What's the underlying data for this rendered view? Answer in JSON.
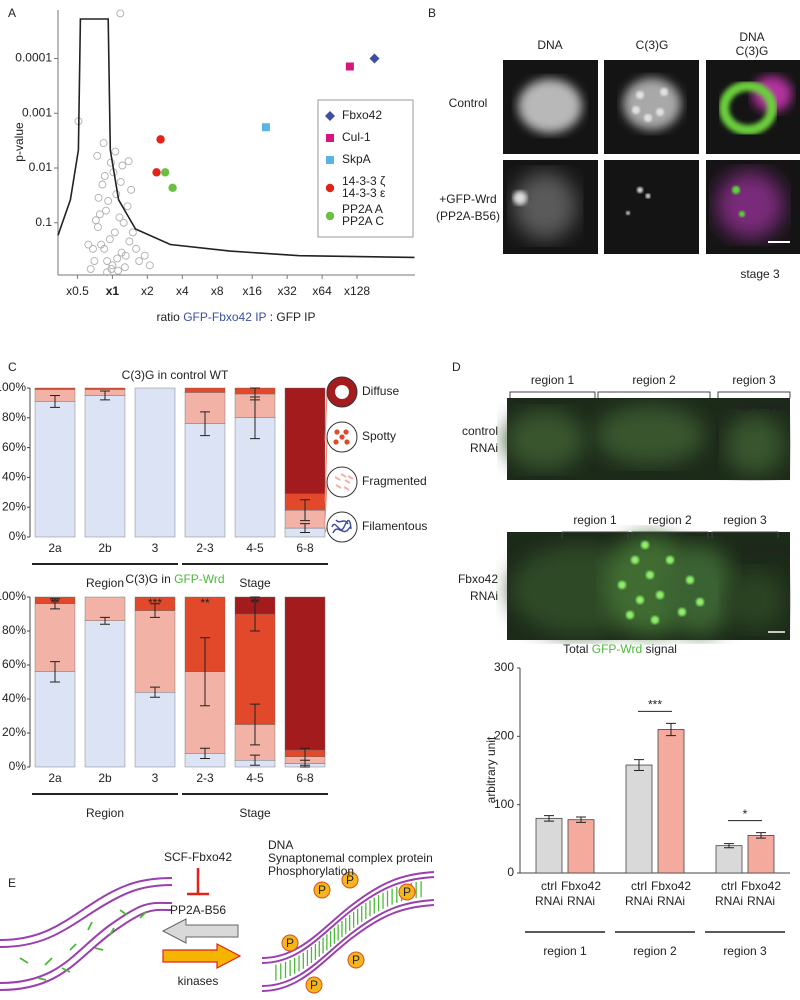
{
  "panel_labels": [
    "A",
    "B",
    "C",
    "D",
    "E"
  ],
  "chart_data": [
    {
      "type": "scatter",
      "ylabel": "p-value",
      "xlabel": [
        "ratio ",
        "GFP-Fbxo42 IP",
        " : GFP IP"
      ],
      "xlog": true,
      "ylog": true,
      "xlim": [
        0.34,
        404
      ],
      "ylim": [
        0.9,
        1.3e-05
      ],
      "xticks": [
        {
          "value": 0.5,
          "label": "x0.5"
        },
        {
          "value": 1,
          "label": "x1",
          "bold": true
        },
        {
          "value": 2,
          "label": "x2"
        },
        {
          "value": 4,
          "label": "x4"
        },
        {
          "value": 8,
          "label": "x8"
        },
        {
          "value": 16,
          "label": "x16"
        },
        {
          "value": 32,
          "label": "x32"
        },
        {
          "value": 64,
          "label": "x64"
        },
        {
          "value": 128,
          "label": "x128"
        }
      ],
      "yticks": [
        0.0001,
        0.001,
        0.01,
        0.1
      ],
      "background": {
        "color": "#b0b0b0",
        "x": [
          1.0,
          0.9,
          1.1,
          0.85,
          1.2,
          0.95,
          1.05,
          0.8,
          1.3,
          0.75,
          1.4,
          0.7,
          1.15,
          0.88,
          1.25,
          0.92,
          1.08,
          0.78,
          1.35,
          0.82,
          1.5,
          0.68,
          1.6,
          0.72,
          1.02,
          0.97,
          1.18,
          0.86,
          1.45,
          0.76,
          1.7,
          0.65,
          1.9,
          0.62,
          2.1,
          0.98,
          1.12,
          0.9,
          1.28,
          1.06,
          0.84,
          1.22,
          1.38,
          0.74,
          1.17,
          0.51
        ],
        "y": [
          0.6,
          0.5,
          0.45,
          0.3,
          0.35,
          0.2,
          0.15,
          0.25,
          0.4,
          0.12,
          0.22,
          0.5,
          0.08,
          0.06,
          0.1,
          0.04,
          0.03,
          0.07,
          0.05,
          0.02,
          0.15,
          0.3,
          0.3,
          0.09,
          0.012,
          0.008,
          0.018,
          0.014,
          0.025,
          0.035,
          0.5,
          0.7,
          0.4,
          0.25,
          0.6,
          0.7,
          0.75,
          0.8,
          0.65,
          0.005,
          0.0035,
          0.009,
          0.0075,
          0.006,
          1.5e-05,
          0.0014
        ]
      },
      "threshold": {
        "color": "#222222",
        "x": [
          0.34,
          0.435,
          0.51,
          0.53,
          0.92,
          0.96,
          1.13,
          1.58,
          3.15,
          10.3,
          41,
          400
        ],
        "y": [
          0.17,
          0.038,
          0.0047,
          1.9e-05,
          1.9e-05,
          0.0047,
          0.038,
          0.13,
          0.25,
          0.33,
          0.4,
          0.43
        ]
      },
      "legend": "right",
      "series": [
        {
          "name": [
            "Fbxo42"
          ],
          "color": "#3c4fa3",
          "marker": "diamond",
          "x": [
            181
          ],
          "y": [
            0.0001
          ]
        },
        {
          "name": [
            "Cul-1"
          ],
          "color": "#d6157f",
          "marker": "square",
          "x": [
            111
          ],
          "y": [
            0.00014
          ]
        },
        {
          "name": [
            "SkpA"
          ],
          "color": "#5bb5e3",
          "marker": "square",
          "x": [
            21
          ],
          "y": [
            0.0018
          ]
        },
        {
          "name": [
            "14-3-3 ζ",
            "14-3-3 ε"
          ],
          "color": "#e2231a",
          "marker": "circle",
          "x": [
            2.6,
            2.4
          ],
          "y": [
            0.003,
            0.012
          ]
        },
        {
          "name": [
            "PP2A A",
            "PP2A C"
          ],
          "color": "#6abf45",
          "marker": "circle",
          "x": [
            2.85,
            3.3
          ],
          "y": [
            0.012,
            0.023
          ]
        }
      ]
    },
    {
      "type": "bar",
      "stacked": true,
      "title": [
        "C(3)G in control WT"
      ],
      "ylim": [
        0,
        100
      ],
      "yticks": [
        {
          "value": 0,
          "label": "0%"
        },
        {
          "value": 20,
          "label": "20%"
        },
        {
          "value": 40,
          "label": "40%"
        },
        {
          "value": 60,
          "label": "60%"
        },
        {
          "value": 80,
          "label": "80%"
        },
        {
          "value": 100,
          "label": "100%"
        }
      ],
      "groups": [
        {
          "name": "Region",
          "categories": [
            "2a",
            "2b",
            "3"
          ]
        },
        {
          "name": "Stage",
          "categories": [
            "2-3",
            "4-5",
            "6-8"
          ]
        }
      ],
      "legend": "right",
      "series": [
        {
          "name": "Filamentous",
          "color": "#dbe3f4",
          "label_color": "#3c4fa3",
          "values": [
            91,
            95,
            100,
            76,
            80,
            6
          ],
          "errors": [
            4,
            3,
            null,
            8,
            14,
            3
          ]
        },
        {
          "name": "Fragmented",
          "color": "#f2b2a5",
          "label_color": "#e8826f",
          "values": [
            8,
            4,
            0,
            21,
            16,
            12
          ],
          "errors": [
            null,
            null,
            null,
            null,
            4,
            7
          ]
        },
        {
          "name": "Spotty",
          "color": "#e2492b",
          "label_color": "#e2492b",
          "values": [
            1,
            1,
            0,
            3,
            4,
            11
          ]
        },
        {
          "name": "Diffuse",
          "color": "#a31b1d",
          "label_color": "#a31b1d",
          "values": [
            0,
            0,
            0,
            0,
            0,
            71
          ]
        }
      ]
    },
    {
      "type": "bar",
      "stacked": true,
      "title": [
        "C(3)G in ",
        "GFP-Wrd"
      ],
      "ylim": [
        0,
        100
      ],
      "yticks": [
        {
          "value": 0,
          "label": "0%"
        },
        {
          "value": 20,
          "label": "20%"
        },
        {
          "value": 40,
          "label": "40%"
        },
        {
          "value": 60,
          "label": "60%"
        },
        {
          "value": 80,
          "label": "80%"
        },
        {
          "value": 100,
          "label": "100%"
        }
      ],
      "groups": [
        {
          "name": "Region",
          "categories": [
            "2a",
            "2b",
            "3"
          ]
        },
        {
          "name": "Stage",
          "categories": [
            "2-3",
            "4-5",
            "6-8"
          ]
        }
      ],
      "annotations": [
        "**",
        null,
        "***",
        "**",
        "**",
        null
      ],
      "series": [
        {
          "name": "Filamentous",
          "color": "#dbe3f4",
          "values": [
            56,
            86,
            44,
            8,
            4,
            2
          ],
          "errors": [
            6,
            2,
            3,
            3,
            3,
            2
          ]
        },
        {
          "name": "Fragmented",
          "color": "#f2b2a5",
          "values": [
            40,
            14,
            48,
            48,
            21,
            4
          ],
          "errors": [
            3,
            null,
            4,
            20,
            12,
            5
          ]
        },
        {
          "name": "Spotty",
          "color": "#e2492b",
          "values": [
            4,
            0,
            8,
            44,
            65,
            4
          ],
          "errors": [
            null,
            null,
            null,
            null,
            10,
            null
          ]
        },
        {
          "name": "Diffuse",
          "color": "#a31b1d",
          "values": [
            0,
            0,
            0,
            0,
            10,
            90
          ]
        }
      ]
    },
    {
      "type": "bar",
      "title": [
        "Total ",
        "GFP-Wrd",
        " signal"
      ],
      "ylabel": "arbitrary unit",
      "ylim": [
        0,
        300
      ],
      "yticks": [
        0,
        100,
        200,
        300
      ],
      "categories": [
        "region 1",
        "region 2",
        "region 3"
      ],
      "significance": [
        null,
        "***",
        "*"
      ],
      "series": [
        {
          "name": [
            "ctrl",
            "RNAi"
          ],
          "color": "#d9d9d9",
          "label_color": "#777777",
          "values": [
            80,
            158,
            40
          ],
          "errors": [
            4,
            8,
            3
          ]
        },
        {
          "name": [
            "Fbxo42",
            "RNAi"
          ],
          "color": "#f4ab9d",
          "label_color": "#e2231a",
          "values": [
            78,
            210,
            55
          ],
          "errors": [
            4,
            9,
            4
          ]
        }
      ]
    }
  ],
  "panel_b": {
    "columns": [
      "DNA",
      "C(3)G",
      [
        "DNA",
        "C(3)G"
      ]
    ],
    "rows": [
      [
        "Control"
      ],
      [
        "+GFP-Wrd",
        "(PP2A-B56)"
      ]
    ],
    "note": "stage 3"
  },
  "panel_d": {
    "channel": "GFP-Wrd",
    "rows": [
      [
        "control",
        "RNAi"
      ],
      [
        "Fbxo42",
        "RNAi"
      ]
    ]
  },
  "panel_e": {
    "inhibitor": "SCF-Fbxo42",
    "phosphatase": "PP2A-B56",
    "kinase": "kinases",
    "legend": [
      "DNA",
      "Synaptonemal complex protein",
      "Phosphorylation"
    ],
    "phospho_mark": "P"
  }
}
